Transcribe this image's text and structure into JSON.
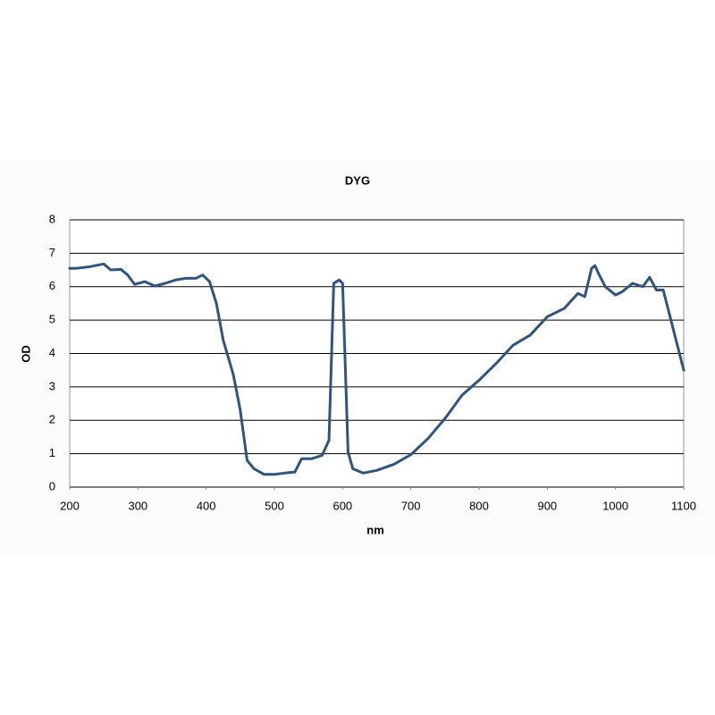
{
  "chart_data": {
    "type": "line",
    "title": "DYG",
    "x_label": "nm",
    "y_label": "OD",
    "x": [
      200,
      210,
      230,
      250,
      260,
      275,
      285,
      295,
      310,
      325,
      340,
      355,
      370,
      385,
      395,
      405,
      415,
      425,
      440,
      450,
      460,
      470,
      485,
      500,
      515,
      530,
      540,
      555,
      570,
      580,
      587,
      595,
      600,
      608,
      615,
      630,
      650,
      675,
      700,
      725,
      750,
      775,
      800,
      825,
      850,
      875,
      900,
      925,
      945,
      955,
      965,
      970,
      975,
      985,
      1000,
      1010,
      1025,
      1040,
      1050,
      1060,
      1070,
      1080,
      1090,
      1100
    ],
    "series": [
      {
        "name": "DYG",
        "color": "#2f5480",
        "values": [
          6.55,
          6.55,
          6.6,
          6.68,
          6.5,
          6.52,
          6.35,
          6.07,
          6.15,
          6.02,
          6.1,
          6.2,
          6.25,
          6.25,
          6.35,
          6.15,
          5.5,
          4.4,
          3.35,
          2.3,
          0.8,
          0.55,
          0.38,
          0.38,
          0.42,
          0.45,
          0.85,
          0.85,
          0.95,
          1.4,
          6.1,
          6.2,
          6.1,
          1.05,
          0.55,
          0.42,
          0.5,
          0.68,
          0.97,
          1.45,
          2.05,
          2.75,
          3.2,
          3.7,
          4.25,
          4.55,
          5.1,
          5.35,
          5.8,
          5.7,
          6.55,
          6.63,
          6.4,
          6.0,
          5.75,
          5.85,
          6.1,
          6.0,
          6.28,
          5.9,
          5.9,
          5.1,
          4.3,
          3.5
        ]
      }
    ],
    "xlim": [
      200,
      1100
    ],
    "xticks": [
      200,
      300,
      400,
      500,
      600,
      700,
      800,
      900,
      1000,
      1100
    ],
    "ylim": [
      0,
      8
    ],
    "yticks": [
      0,
      1,
      2,
      3,
      4,
      5,
      6,
      7,
      8
    ],
    "grid": true
  }
}
